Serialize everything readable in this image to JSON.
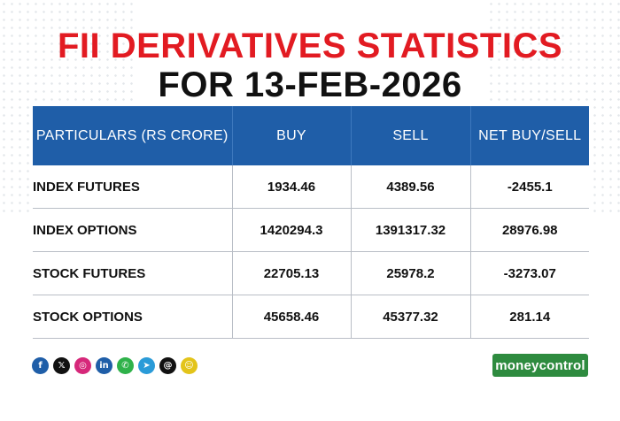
{
  "title_line1": "FII DERIVATIVES STATISTICS",
  "title_line2": "FOR 13-FEB-2026",
  "table": {
    "headers": [
      "PARTICULARS (RS CRORE)",
      "BUY",
      "SELL",
      "NET BUY/SELL"
    ],
    "rows": [
      [
        "INDEX FUTURES",
        "1934.46",
        "4389.56",
        "-2455.1"
      ],
      [
        "INDEX OPTIONS",
        "1420294.3",
        "1391317.32",
        "28976.98"
      ],
      [
        "STOCK FUTURES",
        "22705.13",
        "25978.2",
        "-3273.07"
      ],
      [
        "STOCK OPTIONS",
        "45658.46",
        "45377.32",
        "281.14"
      ]
    ]
  },
  "social_icons": [
    {
      "name": "facebook-icon",
      "glyph": "f",
      "color": "#1f5ea8"
    },
    {
      "name": "x-icon",
      "glyph": "𝕏",
      "color": "#111111"
    },
    {
      "name": "instagram-icon",
      "glyph": "◎",
      "color": "#d6287a"
    },
    {
      "name": "linkedin-icon",
      "glyph": "in",
      "color": "#1f5ea8"
    },
    {
      "name": "whatsapp-icon",
      "glyph": "✆",
      "color": "#2fb24a"
    },
    {
      "name": "telegram-icon",
      "glyph": "➤",
      "color": "#2a9bd8"
    },
    {
      "name": "threads-icon",
      "glyph": "@",
      "color": "#111111"
    },
    {
      "name": "snapchat-icon",
      "glyph": "☺",
      "color": "#e3c41a"
    }
  ],
  "brand": {
    "part1": "money",
    "part2": "control",
    "color": "#2e8b3f"
  },
  "colors": {
    "title_red": "#e21b22",
    "header_blue": "#1f5ea8"
  }
}
